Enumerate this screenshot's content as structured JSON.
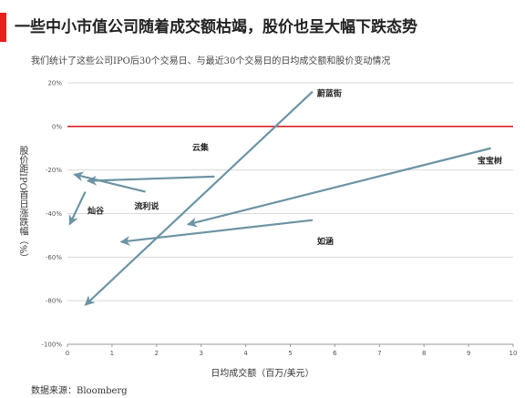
{
  "header": {
    "title": "一些中小市值公司随着成交额枯竭，股价也呈大幅下跌态势",
    "subtitle": "我们统计了这些公司IPO后30个交易日、与最近30个交易日的日均成交额和股价变动情况",
    "source": "数据来源：Bloomberg"
  },
  "colors": {
    "accent": "#e8201d",
    "series": "#6d93a3",
    "zero_line": "#d9242a",
    "grid": "#d9d9d9"
  },
  "chart_data": {
    "type": "scatter",
    "xlabel": "日均成交额（百万/美元）",
    "ylabel": "股价距IPO首日涨跌幅（%）",
    "xlim": [
      0,
      10
    ],
    "ylim": [
      -100,
      20
    ],
    "x_ticks": [
      "0",
      "1",
      "2",
      "3",
      "4",
      "5",
      "6",
      "7",
      "8",
      "9",
      "10"
    ],
    "y_ticks": [
      "20%",
      "0%",
      "-20%",
      "-40%",
      "-60%",
      "-80%",
      "-100%"
    ],
    "grid": true,
    "reference_line_y": 0,
    "series": [
      {
        "name": "蔚蓝街",
        "from": {
          "x": 5.5,
          "y": 16
        },
        "to": {
          "x": 0.4,
          "y": -82
        },
        "label_x": 5.6,
        "label_y": 14
      },
      {
        "name": "宝宝树",
        "from": {
          "x": 9.5,
          "y": -10
        },
        "to": {
          "x": 2.7,
          "y": -45
        },
        "label_x": 9.2,
        "label_y": -17
      },
      {
        "name": "云集",
        "from": {
          "x": 3.3,
          "y": -23
        },
        "to": {
          "x": 0.45,
          "y": -25
        },
        "label_x": 2.8,
        "label_y": -11
      },
      {
        "name": "流利说",
        "from": {
          "x": 1.75,
          "y": -30
        },
        "to": {
          "x": 0.15,
          "y": -22
        },
        "label_x": 1.5,
        "label_y": -38
      },
      {
        "name": "如涵",
        "from": {
          "x": 5.5,
          "y": -43
        },
        "to": {
          "x": 1.2,
          "y": -53
        },
        "label_x": 5.6,
        "label_y": -54
      },
      {
        "name": "灿谷",
        "from": {
          "x": 0.4,
          "y": -30
        },
        "to": {
          "x": 0.05,
          "y": -45
        },
        "label_x": 0.45,
        "label_y": -40
      }
    ]
  }
}
